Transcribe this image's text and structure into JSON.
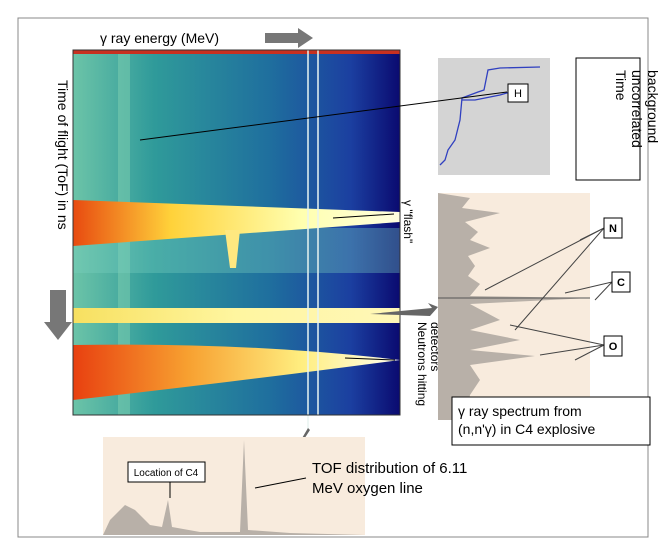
{
  "axis_labels": {
    "x": "γ ray energy (MeV)",
    "y": "Time of flight (ToF) in ns"
  },
  "hydrogen_panel": {
    "peak_label": "H"
  },
  "background_label": [
    "Time",
    "uncorrelated",
    "background"
  ],
  "flash_label": "γ \"flash\"",
  "neutrons_label": [
    "Neutrons hitting",
    "detectors"
  ],
  "spectrum_panel": {
    "peak_labels": [
      "N",
      "C",
      "O"
    ],
    "caption": [
      "γ ray spectrum  from",
      "(n,n'γ) in C4 explosive"
    ]
  },
  "tof_panel": {
    "location_label": "Location of C4",
    "caption": [
      "TOF distribution of 6.11",
      "MeV oxygen line"
    ]
  }
}
